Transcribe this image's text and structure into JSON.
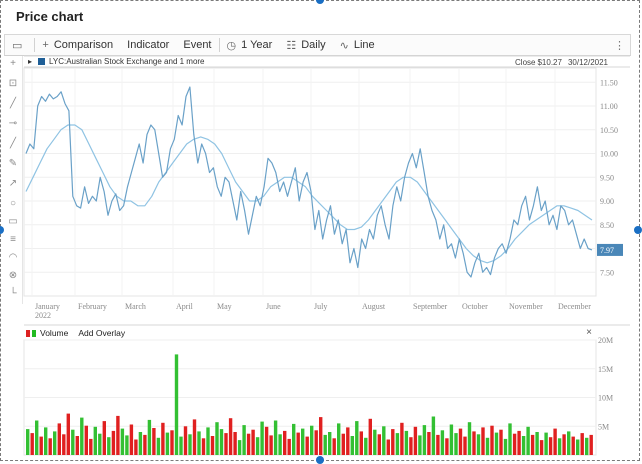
{
  "page": {
    "title": "Price chart"
  },
  "toolbar": {
    "comparison": "Comparison",
    "indicator": "Indicator",
    "event": "Event",
    "range": "1 Year",
    "interval": "Daily",
    "chart_type": "Line"
  },
  "legend": {
    "series": "LYC:Australian Stock Exchange and 1 more",
    "close_label": "Close",
    "close_value": "$10.27",
    "close_date": "30/12/2021",
    "last_price": "7.97"
  },
  "volume_panel": {
    "label": "Volume",
    "add_overlay": "Add Overlay",
    "close": "×"
  },
  "colors": {
    "price_line": "#6aa1c8",
    "ma_line": "#8fc3e3",
    "vol_up": "#33c033",
    "vol_down": "#e02020"
  },
  "chart_data": [
    {
      "type": "line",
      "title": "",
      "x_labels": [
        "January",
        "February",
        "March",
        "April",
        "May",
        "June",
        "July",
        "August",
        "September",
        "October",
        "November",
        "December"
      ],
      "year_label": "2022",
      "y_ticks": [
        "11.50",
        "11.00",
        "10.50",
        "10.00",
        "9.50",
        "9.00",
        "8.50",
        "8.00",
        "7.50"
      ],
      "ylim": [
        7.0,
        11.8
      ],
      "series": [
        {
          "name": "",
          "values": [
            10.0,
            10.2,
            10.1,
            11.0,
            11.2,
            11.1,
            11.25,
            11.15,
            11.2,
            11.3,
            11.05,
            10.9,
            9.1,
            8.9,
            8.85,
            9.3,
            8.95,
            9.1,
            9.0,
            9.5,
            9.2,
            8.7,
            9.0,
            9.15,
            8.8,
            8.9,
            9.3,
            9.6,
            9.9,
            10.2,
            9.8,
            10.4,
            10.6,
            10.5,
            10.0,
            9.5,
            9.6,
            10.1,
            10.3,
            10.8,
            10.6,
            11.2,
            11.4,
            10.4,
            9.8,
            10.2,
            10.0,
            9.6,
            9.7,
            9.3,
            9.1,
            9.5,
            9.4,
            9.0,
            8.6,
            9.2,
            8.8,
            8.3,
            8.7,
            9.1,
            8.9,
            9.3,
            9.9,
            9.8,
            9.6,
            9.2,
            9.4,
            9.1,
            9.4,
            9.7,
            9.0,
            9.4,
            9.6,
            9.2,
            8.4,
            8.8,
            8.2,
            8.6,
            8.9,
            8.3,
            8.6,
            8.1,
            8.4,
            7.7,
            8.0,
            7.6,
            8.2,
            8.0,
            8.4,
            8.2,
            8.7,
            8.9,
            8.5,
            8.2,
            8.9,
            9.3,
            9.0,
            9.5,
            9.8,
            10.0,
            9.7,
            10.1,
            9.6,
            9.1,
            8.8,
            8.6,
            8.2,
            8.5,
            8.0,
            8.1,
            7.8,
            8.2,
            7.9,
            7.5,
            7.4,
            7.7,
            7.9,
            7.5,
            7.6,
            7.45,
            7.8,
            8.0,
            8.1,
            7.9,
            8.2,
            8.6,
            8.5,
            8.9,
            9.1,
            8.6,
            8.9,
            9.3,
            8.8,
            9.0,
            8.5,
            8.7,
            8.4,
            8.9,
            8.8,
            8.5,
            8.6,
            8.3,
            8.0,
            8.2,
            8.0,
            7.97
          ]
        },
        {
          "name": "",
          "values": [
            9.2,
            9.5,
            9.8,
            10.1,
            10.3,
            10.5,
            10.6,
            10.6,
            10.5,
            10.2,
            9.9,
            9.6,
            9.3,
            9.1,
            9.0,
            9.0,
            8.9,
            8.9,
            9.1,
            9.4,
            9.6,
            9.8,
            10.0,
            10.2,
            10.3,
            10.35,
            10.3,
            10.2,
            10.0,
            9.7,
            9.4,
            9.2,
            9.0,
            9.0,
            9.1,
            9.3,
            9.4,
            9.5,
            9.5,
            9.4,
            9.3,
            9.1,
            8.95,
            8.8,
            8.65,
            8.5,
            8.4,
            8.4,
            8.45,
            8.6,
            8.8,
            9.0,
            9.2,
            9.4,
            9.5,
            9.5,
            9.4,
            9.2,
            9.0,
            8.8,
            8.6,
            8.4,
            8.2,
            8.0,
            7.85,
            7.75,
            7.7,
            7.75,
            7.85,
            8.0,
            8.2,
            8.35,
            8.5,
            8.6,
            8.7,
            8.8,
            8.9,
            8.9,
            8.85,
            8.8,
            8.7,
            8.6
          ]
        }
      ]
    },
    {
      "type": "bar",
      "title": "",
      "y_ticks": [
        "20M",
        "15M",
        "10M",
        "5M"
      ],
      "ylim": [
        0,
        20
      ],
      "values": [
        4.5,
        3.8,
        6,
        3.2,
        4.8,
        2.9,
        4.1,
        5.5,
        3.6,
        7.2,
        4.4,
        3.3,
        6.5,
        5.1,
        2.8,
        4.9,
        3.7,
        5.9,
        3.1,
        4.2,
        6.8,
        4.6,
        3.4,
        5.3,
        2.7,
        4.0,
        3.5,
        6.1,
        4.7,
        3.0,
        5.6,
        3.9,
        4.3,
        17.5,
        3.2,
        5.0,
        3.6,
        6.2,
        4.1,
        2.9,
        4.8,
        3.3,
        5.7,
        4.5,
        3.8,
        6.4,
        4.0,
        2.6,
        5.2,
        3.7,
        4.4,
        3.1,
        5.8,
        4.9,
        3.4,
        6.0,
        3.6,
        4.2,
        2.8,
        5.4,
        3.9,
        4.6,
        3.2,
        5.1,
        4.3,
        6.6,
        3.5,
        4.0,
        2.9,
        5.5,
        3.7,
        4.8,
        3.3,
        5.9,
        4.1,
        3.0,
        6.3,
        4.4,
        3.6,
        5.0,
        2.7,
        4.5,
        3.8,
        5.6,
        4.2,
        3.1,
        4.9,
        3.4,
        5.2,
        4.0,
        6.7,
        3.5,
        4.3,
        2.9,
        5.3,
        3.8,
        4.6,
        3.2,
        5.7,
        4.1,
        3.6,
        4.8,
        3.0,
        5.1,
        3.9,
        4.4,
        2.8,
        5.5,
        3.7,
        4.2,
        3.3,
        4.9,
        3.5,
        4.0,
        2.6,
        3.9,
        3.1,
        4.6,
        2.9,
        3.6,
        4.1,
        3.2,
        2.7,
        3.8,
        3.0,
        3.5
      ],
      "up": [
        true,
        false,
        true,
        false,
        true,
        false,
        true,
        false,
        false,
        false,
        true,
        false,
        true,
        false,
        false,
        true,
        true,
        false,
        true,
        false,
        false,
        true,
        true,
        false,
        false,
        true,
        false,
        true,
        false,
        true,
        false,
        true,
        false,
        true,
        true,
        false,
        true,
        false,
        true,
        false,
        true,
        false,
        true,
        true,
        false,
        false,
        false,
        true,
        true,
        false,
        false,
        true,
        true,
        false,
        false,
        true,
        true,
        false,
        false,
        true,
        false,
        true,
        false,
        true,
        false,
        false,
        true,
        true,
        false,
        true,
        false,
        false,
        true,
        true,
        false,
        true,
        false,
        true,
        false,
        true,
        false,
        false,
        true,
        false,
        true,
        false,
        false,
        true,
        true,
        false,
        true,
        false,
        true,
        false,
        true,
        true,
        false,
        false,
        true,
        false,
        true,
        false,
        true,
        false,
        true,
        false,
        true,
        true,
        false,
        false,
        true,
        true,
        false,
        true,
        false,
        true,
        false,
        false,
        true,
        false,
        true,
        false,
        true,
        false,
        true,
        false
      ]
    }
  ]
}
